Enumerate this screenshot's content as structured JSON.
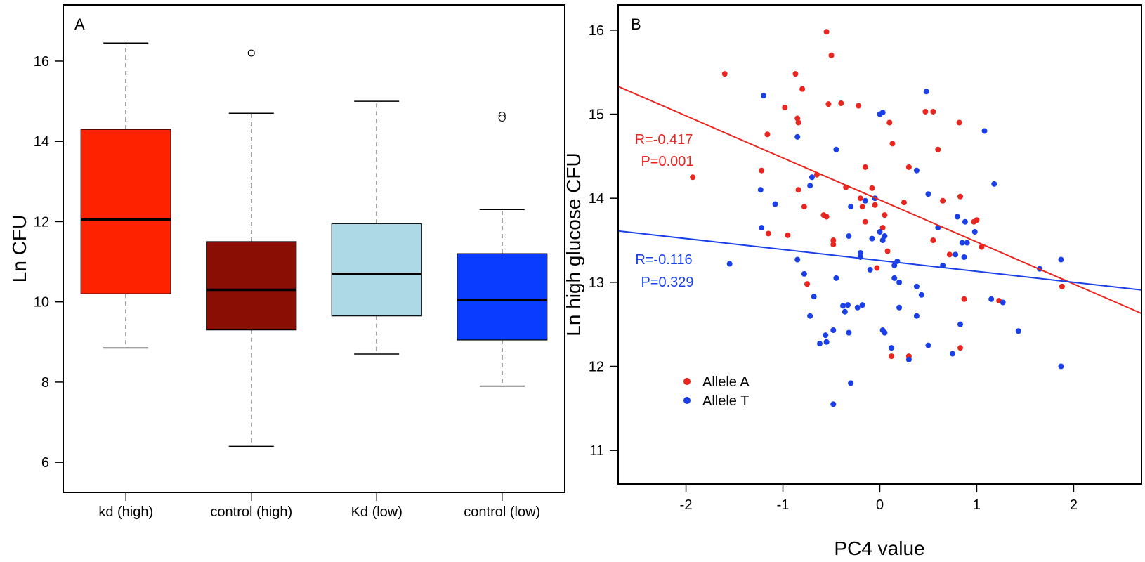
{
  "chart_data": [
    {
      "type": "box",
      "panel_label": "A",
      "ylabel": "Ln CFU",
      "ylim": [
        5.25,
        17.4
      ],
      "y_ticks": [
        6,
        8,
        10,
        12,
        14,
        16
      ],
      "categories": [
        "kd (high)",
        "control (high)",
        "Kd (low)",
        "control (low)"
      ],
      "boxes": [
        {
          "label": "kd (high)",
          "whisker_low": 8.85,
          "q1": 10.2,
          "median": 12.05,
          "q3": 14.3,
          "whisker_high": 16.45,
          "outliers": [],
          "color": "#ff2200"
        },
        {
          "label": "control (high)",
          "whisker_low": 6.4,
          "q1": 9.3,
          "median": 10.3,
          "q3": 11.5,
          "whisker_high": 14.7,
          "outliers": [
            16.2
          ],
          "color": "#8b0e04"
        },
        {
          "label": "Kd (low)",
          "whisker_low": 8.7,
          "q1": 9.65,
          "median": 10.7,
          "q3": 11.95,
          "whisker_high": 15.0,
          "outliers": [],
          "color": "#add8e6"
        },
        {
          "label": "control (low)",
          "whisker_low": 7.9,
          "q1": 9.05,
          "median": 10.05,
          "q3": 11.2,
          "whisker_high": 12.3,
          "outliers": [
            14.65,
            14.58
          ],
          "color": "#0a3cff"
        }
      ]
    },
    {
      "type": "scatter",
      "panel_label": "B",
      "xlabel": "PC4 value",
      "ylabel": "Ln high glucose CFU",
      "xlim": [
        -2.7,
        2.7
      ],
      "ylim": [
        10.6,
        16.3
      ],
      "x_ticks": [
        -2,
        -1,
        0,
        1,
        2
      ],
      "y_ticks": [
        11,
        12,
        13,
        14,
        15,
        16
      ],
      "legend_position": "bottom-left",
      "series": [
        {
          "name": "Allele A",
          "color": "#e8251f",
          "fit": {
            "intercept": 13.98,
            "slope": -0.5
          },
          "annotation": {
            "r": "R=-0.417",
            "p": "P=0.001"
          },
          "points": [
            [
              -1.6,
              15.48
            ],
            [
              -1.93,
              14.25
            ],
            [
              -1.22,
              14.33
            ],
            [
              -1.16,
              14.76
            ],
            [
              -0.98,
              15.08
            ],
            [
              -0.87,
              15.48
            ],
            [
              -0.85,
              14.95
            ],
            [
              -0.84,
              14.9
            ],
            [
              -0.8,
              15.3
            ],
            [
              -0.84,
              14.1
            ],
            [
              -0.78,
              13.9
            ],
            [
              -0.95,
              13.56
            ],
            [
              -1.15,
              13.58
            ],
            [
              -0.55,
              15.98
            ],
            [
              -0.53,
              15.12
            ],
            [
              -0.5,
              15.7
            ],
            [
              -0.4,
              15.13
            ],
            [
              -0.22,
              15.1
            ],
            [
              -0.65,
              14.28
            ],
            [
              -0.58,
              13.8
            ],
            [
              -0.55,
              13.78
            ],
            [
              -0.48,
              13.45
            ],
            [
              -0.48,
              13.5
            ],
            [
              -0.35,
              14.13
            ],
            [
              -0.2,
              14.0
            ],
            [
              -0.15,
              14.37
            ],
            [
              -0.08,
              14.12
            ],
            [
              -0.05,
              13.92
            ],
            [
              -0.18,
              13.9
            ],
            [
              -0.15,
              13.72
            ],
            [
              0.03,
              13.65
            ],
            [
              0.05,
              13.8
            ],
            [
              0.08,
              13.37
            ],
            [
              -0.03,
              13.17
            ],
            [
              0.1,
              14.9
            ],
            [
              0.13,
              14.65
            ],
            [
              0.25,
              13.95
            ],
            [
              0.3,
              14.37
            ],
            [
              0.47,
              15.03
            ],
            [
              0.55,
              15.03
            ],
            [
              0.6,
              14.58
            ],
            [
              0.65,
              13.97
            ],
            [
              0.55,
              13.5
            ],
            [
              0.72,
              13.33
            ],
            [
              0.82,
              14.9
            ],
            [
              0.83,
              14.02
            ],
            [
              0.97,
              13.72
            ],
            [
              1.0,
              13.74
            ],
            [
              1.05,
              13.42
            ],
            [
              0.87,
              12.8
            ],
            [
              1.23,
              12.78
            ],
            [
              0.83,
              12.22
            ],
            [
              0.12,
              12.12
            ],
            [
              0.3,
              12.12
            ],
            [
              1.88,
              12.95
            ],
            [
              -0.75,
              12.98
            ]
          ]
        },
        {
          "name": "Allele T",
          "color": "#1a3fe8",
          "fit": {
            "intercept": 13.26,
            "slope": -0.13
          },
          "annotation": {
            "r": "R=-0.116",
            "p": "P=0.329"
          },
          "points": [
            [
              -1.2,
              15.22
            ],
            [
              -0.85,
              14.73
            ],
            [
              -1.23,
              14.1
            ],
            [
              -1.08,
              13.93
            ],
            [
              -1.22,
              13.65
            ],
            [
              -0.7,
              14.25
            ],
            [
              -0.72,
              14.15
            ],
            [
              -0.45,
              14.58
            ],
            [
              -0.3,
              13.9
            ],
            [
              -0.32,
              13.55
            ],
            [
              -0.15,
              13.97
            ],
            [
              -0.05,
              14.0
            ],
            [
              0.0,
              15.0
            ],
            [
              0.03,
              15.02
            ],
            [
              0.48,
              15.27
            ],
            [
              0.38,
              14.33
            ],
            [
              0.5,
              14.05
            ],
            [
              0.6,
              13.65
            ],
            [
              0.8,
              13.78
            ],
            [
              0.88,
              13.72
            ],
            [
              0.98,
              13.6
            ],
            [
              0.85,
              13.47
            ],
            [
              0.9,
              13.47
            ],
            [
              0.87,
              13.3
            ],
            [
              0.78,
              13.33
            ],
            [
              0.65,
              13.2
            ],
            [
              1.08,
              14.8
            ],
            [
              1.18,
              14.17
            ],
            [
              0.05,
              13.55
            ],
            [
              0.0,
              13.6
            ],
            [
              0.03,
              13.5
            ],
            [
              -0.2,
              13.35
            ],
            [
              -0.2,
              13.3
            ],
            [
              -0.1,
              13.15
            ],
            [
              -0.08,
              13.52
            ],
            [
              0.15,
              13.2
            ],
            [
              0.18,
              13.25
            ],
            [
              0.2,
              13.0
            ],
            [
              0.15,
              13.05
            ],
            [
              -0.85,
              13.27
            ],
            [
              -0.78,
              13.1
            ],
            [
              -0.68,
              12.83
            ],
            [
              -0.72,
              12.6
            ],
            [
              -0.45,
              13.05
            ],
            [
              -0.38,
              12.72
            ],
            [
              -0.33,
              12.73
            ],
            [
              -0.23,
              12.7
            ],
            [
              -0.18,
              12.73
            ],
            [
              -0.36,
              12.65
            ],
            [
              -0.48,
              12.43
            ],
            [
              -0.56,
              12.37
            ],
            [
              -0.55,
              12.29
            ],
            [
              -0.62,
              12.27
            ],
            [
              -0.32,
              12.4
            ],
            [
              0.38,
              12.95
            ],
            [
              0.43,
              12.85
            ],
            [
              0.38,
              12.6
            ],
            [
              0.2,
              12.7
            ],
            [
              0.12,
              12.22
            ],
            [
              0.05,
              12.4
            ],
            [
              0.03,
              12.43
            ],
            [
              0.3,
              12.08
            ],
            [
              0.5,
              12.25
            ],
            [
              0.75,
              12.15
            ],
            [
              0.83,
              12.5
            ],
            [
              1.15,
              12.8
            ],
            [
              1.27,
              12.76
            ],
            [
              1.43,
              12.42
            ],
            [
              1.65,
              13.16
            ],
            [
              1.87,
              13.27
            ],
            [
              1.87,
              12.0
            ],
            [
              -1.55,
              13.22
            ],
            [
              -0.3,
              11.8
            ],
            [
              -0.48,
              11.55
            ]
          ]
        }
      ]
    }
  ]
}
